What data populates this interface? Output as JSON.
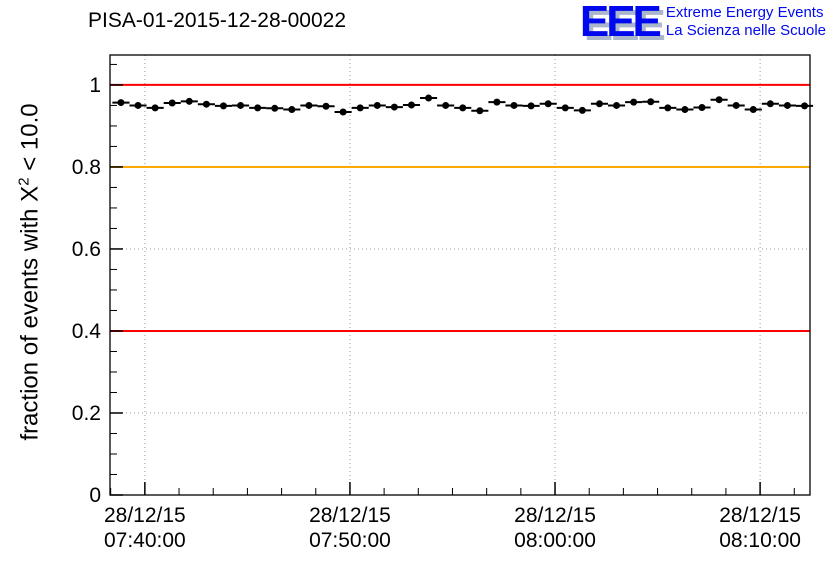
{
  "header": {
    "title": "PISA-01-2015-12-28-00022"
  },
  "logo": {
    "acronym": "EEE",
    "line1": "Extreme Energy Events",
    "line2": "La Scienza nelle Scuole",
    "color": "#0008f0"
  },
  "ylabel_parts": {
    "pre": "fraction of events with X",
    "sup": "2",
    "post": " < 10.0"
  },
  "colors": {
    "axis": "#000000",
    "grid": "#999999",
    "marker": "#000000",
    "ref_red": "#ff0000",
    "ref_orange": "#ffaa00",
    "background": "#ffffff"
  },
  "chart_data": {
    "type": "scatter",
    "title": "PISA-01-2015-12-28-00022",
    "xlabel": "",
    "ylabel": "fraction of events with X^2 < 10.0",
    "grid": true,
    "legend": "none",
    "xlim_seconds": [
      -102,
      1946
    ],
    "ylim": [
      0,
      1.073
    ],
    "x_ticks": [
      {
        "seconds": 0,
        "label_date": "28/12/15",
        "label_time": "07:40:00"
      },
      {
        "seconds": 600,
        "label_date": "28/12/15",
        "label_time": "07:50:00"
      },
      {
        "seconds": 1200,
        "label_date": "28/12/15",
        "label_time": "08:00:00"
      },
      {
        "seconds": 1800,
        "label_date": "28/12/15",
        "label_time": "08:10:00"
      }
    ],
    "y_ticks": [
      0,
      0.2,
      0.4,
      0.6,
      0.8,
      1
    ],
    "reference_lines": [
      {
        "y": 1.0,
        "color": "#ff0000"
      },
      {
        "y": 0.8,
        "color": "#ffaa00"
      },
      {
        "y": 0.4,
        "color": "#ff0000"
      }
    ],
    "points": {
      "xerr_seconds": 25,
      "t_seconds": [
        -70,
        -20,
        30,
        80,
        130,
        180,
        230,
        280,
        330,
        380,
        430,
        480,
        530,
        580,
        630,
        680,
        730,
        780,
        830,
        880,
        930,
        980,
        1030,
        1080,
        1130,
        1180,
        1230,
        1280,
        1330,
        1380,
        1430,
        1480,
        1530,
        1580,
        1630,
        1680,
        1730,
        1780,
        1830,
        1880,
        1930
      ],
      "y": [
        0.957,
        0.95,
        0.944,
        0.956,
        0.96,
        0.953,
        0.949,
        0.95,
        0.944,
        0.943,
        0.94,
        0.95,
        0.948,
        0.934,
        0.944,
        0.95,
        0.946,
        0.951,
        0.968,
        0.95,
        0.944,
        0.937,
        0.958,
        0.95,
        0.949,
        0.954,
        0.944,
        0.938,
        0.954,
        0.95,
        0.958,
        0.959,
        0.944,
        0.94,
        0.945,
        0.964,
        0.95,
        0.94,
        0.954,
        0.95,
        0.949
      ]
    }
  }
}
